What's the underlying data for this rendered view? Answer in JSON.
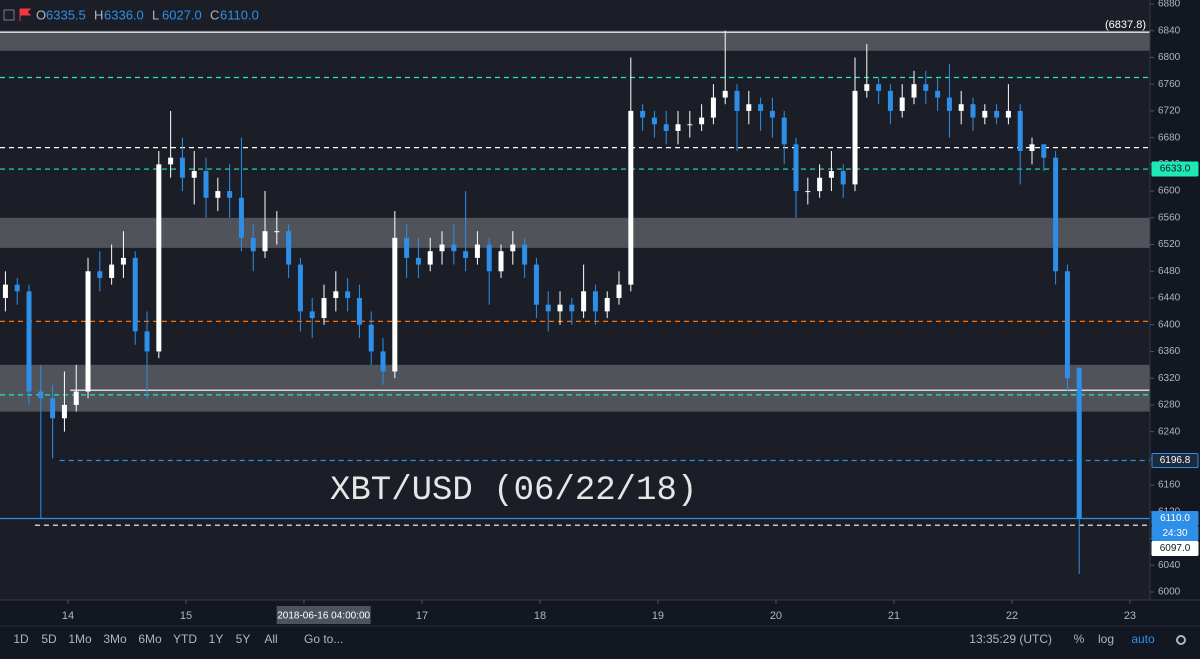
{
  "chart_data": {
    "type": "candlestick",
    "header": {
      "ohlc": [
        {
          "key": "O",
          "text": "6335.5"
        },
        {
          "key": "H",
          "text": "6336.0"
        },
        {
          "key": "L",
          "text": "6027.0"
        },
        {
          "key": "C",
          "text": "6110.0"
        }
      ]
    },
    "annotation": "XBT/USD (06/22/18)",
    "up_color": "#ffffff",
    "down_color": "#2e8fe8",
    "xlim": [
      13.424,
      23.17
    ],
    "xticks": [
      14,
      15,
      16,
      17,
      18,
      19,
      20,
      21,
      22,
      23
    ],
    "crosshair": {
      "value": 16.167,
      "label": "2018-06-16 04:00:00"
    },
    "ylim": [
      6000,
      6880
    ],
    "yticks": [
      6000,
      6040,
      6080,
      6120,
      6160,
      6200,
      6240,
      6280,
      6320,
      6360,
      6400,
      6440,
      6480,
      6520,
      6560,
      6600,
      6640,
      6680,
      6720,
      6760,
      6800,
      6840,
      6880
    ],
    "zones": [
      {
        "from": 6810,
        "to": 6840
      },
      {
        "from": 6515,
        "to": 6560
      },
      {
        "from": 6270,
        "to": 6340
      }
    ],
    "levels": [
      {
        "value": 6837.8,
        "color": "#ffffff",
        "dash": false,
        "x_start": 13.424
      },
      {
        "value": 6770,
        "color": "#1de9b6",
        "dash": true,
        "x_start": 13.424
      },
      {
        "value": 6665,
        "color": "#ffffff",
        "dash": true,
        "x_start": 13.424
      },
      {
        "value": 6633,
        "color": "#1de9b6",
        "dash": true,
        "x_start": 13.424
      },
      {
        "value": 6405,
        "color": "#ff6d00",
        "dash": true,
        "x_start": 13.424
      },
      {
        "value": 6302,
        "color": "#ffffff",
        "dash": false,
        "x_start": 14.02
      },
      {
        "value": 6295,
        "color": "#1de9b6",
        "dash": true,
        "x_start": 13.424
      },
      {
        "value": 6196.8,
        "color": "#2e8fe8",
        "dash": true,
        "x_start": 13.93
      },
      {
        "value": 6110,
        "color": "#2e8fe8",
        "dash": false,
        "x_start": 13.424
      },
      {
        "value": 6100,
        "color": "#ffffff",
        "dash": true,
        "x_start": 13.72
      }
    ],
    "top_label": {
      "value": 6837.8,
      "label": "(6837.8)"
    },
    "price_labels": [
      {
        "value": 6633,
        "label": "6633.0",
        "bg": "#1de9b6",
        "fg": "#131722"
      },
      {
        "value": 6196.8,
        "label": "6196.8",
        "bg": "#1e2a3a",
        "fg": "#ffffff"
      },
      {
        "value": 6110,
        "label": "6110.0",
        "bg": "#2e8fe8",
        "fg": "#ffffff"
      },
      {
        "value": 6110,
        "label": "24:30",
        "bg": "#2e8fe8",
        "fg": "#ffffff"
      },
      {
        "value": 6097,
        "label": "6097.0",
        "bg": "#ffffff",
        "fg": "#131722"
      }
    ],
    "candles": [
      {
        "x": 13.47,
        "o": 6440,
        "h": 6480,
        "l": 6420,
        "c": 6460
      },
      {
        "x": 13.57,
        "o": 6460,
        "h": 6470,
        "l": 6430,
        "c": 6450
      },
      {
        "x": 13.67,
        "o": 6450,
        "h": 6460,
        "l": 6280,
        "c": 6300
      },
      {
        "x": 13.77,
        "o": 6300,
        "h": 6340,
        "l": 6110,
        "c": 6290
      },
      {
        "x": 13.87,
        "o": 6290,
        "h": 6310,
        "l": 6200,
        "c": 6260
      },
      {
        "x": 13.97,
        "o": 6260,
        "h": 6330,
        "l": 6240,
        "c": 6280
      },
      {
        "x": 14.07,
        "o": 6280,
        "h": 6340,
        "l": 6270,
        "c": 6300
      },
      {
        "x": 14.17,
        "o": 6300,
        "h": 6500,
        "l": 6290,
        "c": 6480
      },
      {
        "x": 14.27,
        "o": 6480,
        "h": 6510,
        "l": 6450,
        "c": 6470
      },
      {
        "x": 14.37,
        "o": 6470,
        "h": 6520,
        "l": 6460,
        "c": 6490
      },
      {
        "x": 14.47,
        "o": 6490,
        "h": 6540,
        "l": 6470,
        "c": 6500
      },
      {
        "x": 14.57,
        "o": 6500,
        "h": 6510,
        "l": 6370,
        "c": 6390
      },
      {
        "x": 14.67,
        "o": 6390,
        "h": 6420,
        "l": 6290,
        "c": 6360
      },
      {
        "x": 14.77,
        "o": 6360,
        "h": 6660,
        "l": 6350,
        "c": 6640
      },
      {
        "x": 14.87,
        "o": 6640,
        "h": 6720,
        "l": 6620,
        "c": 6650
      },
      {
        "x": 14.97,
        "o": 6650,
        "h": 6680,
        "l": 6600,
        "c": 6620
      },
      {
        "x": 15.07,
        "o": 6620,
        "h": 6660,
        "l": 6580,
        "c": 6630
      },
      {
        "x": 15.17,
        "o": 6630,
        "h": 6650,
        "l": 6560,
        "c": 6590
      },
      {
        "x": 15.27,
        "o": 6590,
        "h": 6620,
        "l": 6570,
        "c": 6600
      },
      {
        "x": 15.37,
        "o": 6600,
        "h": 6640,
        "l": 6560,
        "c": 6590
      },
      {
        "x": 15.47,
        "o": 6590,
        "h": 6680,
        "l": 6510,
        "c": 6530
      },
      {
        "x": 15.57,
        "o": 6530,
        "h": 6550,
        "l": 6480,
        "c": 6510
      },
      {
        "x": 15.67,
        "o": 6510,
        "h": 6600,
        "l": 6500,
        "c": 6540
      },
      {
        "x": 15.77,
        "o": 6540,
        "h": 6570,
        "l": 6520,
        "c": 6540
      },
      {
        "x": 15.87,
        "o": 6540,
        "h": 6550,
        "l": 6470,
        "c": 6490
      },
      {
        "x": 15.97,
        "o": 6490,
        "h": 6500,
        "l": 6390,
        "c": 6420
      },
      {
        "x": 16.07,
        "o": 6420,
        "h": 6440,
        "l": 6380,
        "c": 6410
      },
      {
        "x": 16.17,
        "o": 6410,
        "h": 6460,
        "l": 6400,
        "c": 6440
      },
      {
        "x": 16.27,
        "o": 6440,
        "h": 6480,
        "l": 6420,
        "c": 6450
      },
      {
        "x": 16.37,
        "o": 6450,
        "h": 6470,
        "l": 6420,
        "c": 6440
      },
      {
        "x": 16.47,
        "o": 6440,
        "h": 6460,
        "l": 6380,
        "c": 6400
      },
      {
        "x": 16.57,
        "o": 6400,
        "h": 6420,
        "l": 6340,
        "c": 6360
      },
      {
        "x": 16.67,
        "o": 6360,
        "h": 6380,
        "l": 6310,
        "c": 6330
      },
      {
        "x": 16.77,
        "o": 6330,
        "h": 6570,
        "l": 6320,
        "c": 6530
      },
      {
        "x": 16.87,
        "o": 6530,
        "h": 6550,
        "l": 6470,
        "c": 6500
      },
      {
        "x": 16.97,
        "o": 6500,
        "h": 6530,
        "l": 6470,
        "c": 6490
      },
      {
        "x": 17.07,
        "o": 6490,
        "h": 6530,
        "l": 6480,
        "c": 6510
      },
      {
        "x": 17.17,
        "o": 6510,
        "h": 6540,
        "l": 6490,
        "c": 6520
      },
      {
        "x": 17.27,
        "o": 6520,
        "h": 6550,
        "l": 6490,
        "c": 6510
      },
      {
        "x": 17.37,
        "o": 6510,
        "h": 6600,
        "l": 6480,
        "c": 6500
      },
      {
        "x": 17.47,
        "o": 6500,
        "h": 6540,
        "l": 6490,
        "c": 6520
      },
      {
        "x": 17.57,
        "o": 6520,
        "h": 6530,
        "l": 6430,
        "c": 6480
      },
      {
        "x": 17.67,
        "o": 6480,
        "h": 6520,
        "l": 6470,
        "c": 6510
      },
      {
        "x": 17.77,
        "o": 6510,
        "h": 6540,
        "l": 6490,
        "c": 6520
      },
      {
        "x": 17.87,
        "o": 6520,
        "h": 6530,
        "l": 6470,
        "c": 6490
      },
      {
        "x": 17.97,
        "o": 6490,
        "h": 6500,
        "l": 6410,
        "c": 6430
      },
      {
        "x": 18.07,
        "o": 6430,
        "h": 6450,
        "l": 6390,
        "c": 6420
      },
      {
        "x": 18.17,
        "o": 6420,
        "h": 6450,
        "l": 6400,
        "c": 6430
      },
      {
        "x": 18.27,
        "o": 6430,
        "h": 6440,
        "l": 6400,
        "c": 6420
      },
      {
        "x": 18.37,
        "o": 6420,
        "h": 6490,
        "l": 6410,
        "c": 6450
      },
      {
        "x": 18.47,
        "o": 6450,
        "h": 6460,
        "l": 6400,
        "c": 6420
      },
      {
        "x": 18.57,
        "o": 6420,
        "h": 6450,
        "l": 6410,
        "c": 6440
      },
      {
        "x": 18.67,
        "o": 6440,
        "h": 6480,
        "l": 6430,
        "c": 6460
      },
      {
        "x": 18.77,
        "o": 6460,
        "h": 6800,
        "l": 6450,
        "c": 6720
      },
      {
        "x": 18.87,
        "o": 6720,
        "h": 6730,
        "l": 6690,
        "c": 6710
      },
      {
        "x": 18.97,
        "o": 6710,
        "h": 6720,
        "l": 6680,
        "c": 6700
      },
      {
        "x": 19.07,
        "o": 6700,
        "h": 6720,
        "l": 6670,
        "c": 6690
      },
      {
        "x": 19.17,
        "o": 6690,
        "h": 6720,
        "l": 6670,
        "c": 6700
      },
      {
        "x": 19.27,
        "o": 6700,
        "h": 6720,
        "l": 6680,
        "c": 6700
      },
      {
        "x": 19.37,
        "o": 6700,
        "h": 6730,
        "l": 6690,
        "c": 6710
      },
      {
        "x": 19.47,
        "o": 6710,
        "h": 6760,
        "l": 6700,
        "c": 6740
      },
      {
        "x": 19.57,
        "o": 6740,
        "h": 6840,
        "l": 6730,
        "c": 6750
      },
      {
        "x": 19.67,
        "o": 6750,
        "h": 6760,
        "l": 6660,
        "c": 6720
      },
      {
        "x": 19.77,
        "o": 6720,
        "h": 6750,
        "l": 6700,
        "c": 6730
      },
      {
        "x": 19.87,
        "o": 6730,
        "h": 6740,
        "l": 6690,
        "c": 6720
      },
      {
        "x": 19.97,
        "o": 6720,
        "h": 6740,
        "l": 6680,
        "c": 6710
      },
      {
        "x": 20.07,
        "o": 6710,
        "h": 6720,
        "l": 6640,
        "c": 6670
      },
      {
        "x": 20.17,
        "o": 6670,
        "h": 6680,
        "l": 6560,
        "c": 6600
      },
      {
        "x": 20.27,
        "o": 6600,
        "h": 6620,
        "l": 6580,
        "c": 6600
      },
      {
        "x": 20.37,
        "o": 6600,
        "h": 6640,
        "l": 6590,
        "c": 6620
      },
      {
        "x": 20.47,
        "o": 6620,
        "h": 6660,
        "l": 6600,
        "c": 6630
      },
      {
        "x": 20.57,
        "o": 6630,
        "h": 6640,
        "l": 6590,
        "c": 6610
      },
      {
        "x": 20.67,
        "o": 6610,
        "h": 6800,
        "l": 6600,
        "c": 6750
      },
      {
        "x": 20.77,
        "o": 6750,
        "h": 6820,
        "l": 6740,
        "c": 6760
      },
      {
        "x": 20.87,
        "o": 6760,
        "h": 6770,
        "l": 6730,
        "c": 6750
      },
      {
        "x": 20.97,
        "o": 6750,
        "h": 6760,
        "l": 6700,
        "c": 6720
      },
      {
        "x": 21.07,
        "o": 6720,
        "h": 6760,
        "l": 6710,
        "c": 6740
      },
      {
        "x": 21.17,
        "o": 6740,
        "h": 6780,
        "l": 6730,
        "c": 6760
      },
      {
        "x": 21.27,
        "o": 6760,
        "h": 6780,
        "l": 6730,
        "c": 6750
      },
      {
        "x": 21.37,
        "o": 6750,
        "h": 6770,
        "l": 6720,
        "c": 6740
      },
      {
        "x": 21.47,
        "o": 6740,
        "h": 6790,
        "l": 6680,
        "c": 6720
      },
      {
        "x": 21.57,
        "o": 6720,
        "h": 6750,
        "l": 6700,
        "c": 6730
      },
      {
        "x": 21.67,
        "o": 6730,
        "h": 6740,
        "l": 6690,
        "c": 6710
      },
      {
        "x": 21.77,
        "o": 6710,
        "h": 6730,
        "l": 6700,
        "c": 6720
      },
      {
        "x": 21.87,
        "o": 6720,
        "h": 6730,
        "l": 6700,
        "c": 6710
      },
      {
        "x": 21.97,
        "o": 6710,
        "h": 6760,
        "l": 6700,
        "c": 6720
      },
      {
        "x": 22.07,
        "o": 6720,
        "h": 6730,
        "l": 6610,
        "c": 6660
      },
      {
        "x": 22.17,
        "o": 6660,
        "h": 6680,
        "l": 6640,
        "c": 6670
      },
      {
        "x": 22.27,
        "o": 6670,
        "h": 6670,
        "l": 6630,
        "c": 6650
      },
      {
        "x": 22.37,
        "o": 6650,
        "h": 6660,
        "l": 6460,
        "c": 6480
      },
      {
        "x": 22.47,
        "o": 6480,
        "h": 6490,
        "l": 6300,
        "c": 6320
      },
      {
        "x": 22.57,
        "o": 6335.5,
        "h": 6336,
        "l": 6027,
        "c": 6110
      }
    ],
    "toolbar": {
      "ranges": [
        "1D",
        "5D",
        "1Mo",
        "3Mo",
        "6Mo",
        "YTD",
        "1Y",
        "5Y",
        "All"
      ],
      "goto": "Go to...",
      "clock": "13:35:29 (UTC)",
      "percent": "%",
      "log": "log",
      "auto": "auto"
    }
  }
}
